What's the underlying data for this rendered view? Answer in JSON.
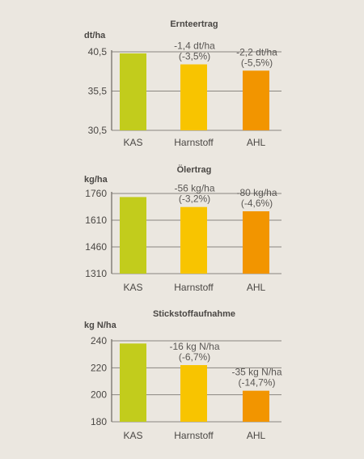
{
  "chart_data": [
    {
      "type": "bar",
      "title": "Ernteertrag",
      "ylabel": "dt/ha",
      "categories": [
        "KAS",
        "Harnstoff",
        "AHL"
      ],
      "values": [
        40.3,
        38.9,
        38.1
      ],
      "ylim": [
        30.5,
        40.5
      ],
      "yticks": [
        "40,5",
        "35,5",
        "30,5"
      ],
      "ytick_values": [
        40.5,
        35.5,
        30.5
      ],
      "colors": [
        "#c2cc1c",
        "#f8c400",
        "#f29500"
      ],
      "grid": true,
      "annotations": [
        null,
        [
          "-1,4 dt/ha",
          "(-3,5%)"
        ],
        [
          "-2,2 dt/ha",
          "(-5,5%)"
        ]
      ]
    },
    {
      "type": "bar",
      "title": "Ölertrag",
      "ylabel": "kg/ha",
      "categories": [
        "KAS",
        "Harnstoff",
        "AHL"
      ],
      "values": [
        1740,
        1684,
        1660
      ],
      "ylim": [
        1310,
        1760
      ],
      "yticks": [
        "1760",
        "1610",
        "1460",
        "1310"
      ],
      "ytick_values": [
        1760,
        1610,
        1460,
        1310
      ],
      "colors": [
        "#c2cc1c",
        "#f8c400",
        "#f29500"
      ],
      "grid": true,
      "annotations": [
        null,
        [
          "-56 kg/ha",
          "(-3,2%)"
        ],
        [
          "-80 kg/ha",
          "(-4,6%)"
        ]
      ]
    },
    {
      "type": "bar",
      "title": "Stickstoffaufnahme",
      "ylabel": "kg N/ha",
      "categories": [
        "KAS",
        "Harnstoff",
        "AHL"
      ],
      "values": [
        238,
        222,
        203
      ],
      "ylim": [
        180,
        240
      ],
      "yticks": [
        "240",
        "220",
        "200",
        "180"
      ],
      "ytick_values": [
        240,
        220,
        200,
        180
      ],
      "colors": [
        "#c2cc1c",
        "#f8c400",
        "#f29500"
      ],
      "grid": true,
      "annotations": [
        null,
        [
          "-16 kg N/ha",
          "(-6,7%)"
        ],
        [
          "-35 kg N/ha",
          "(-14,7%)"
        ]
      ]
    }
  ]
}
